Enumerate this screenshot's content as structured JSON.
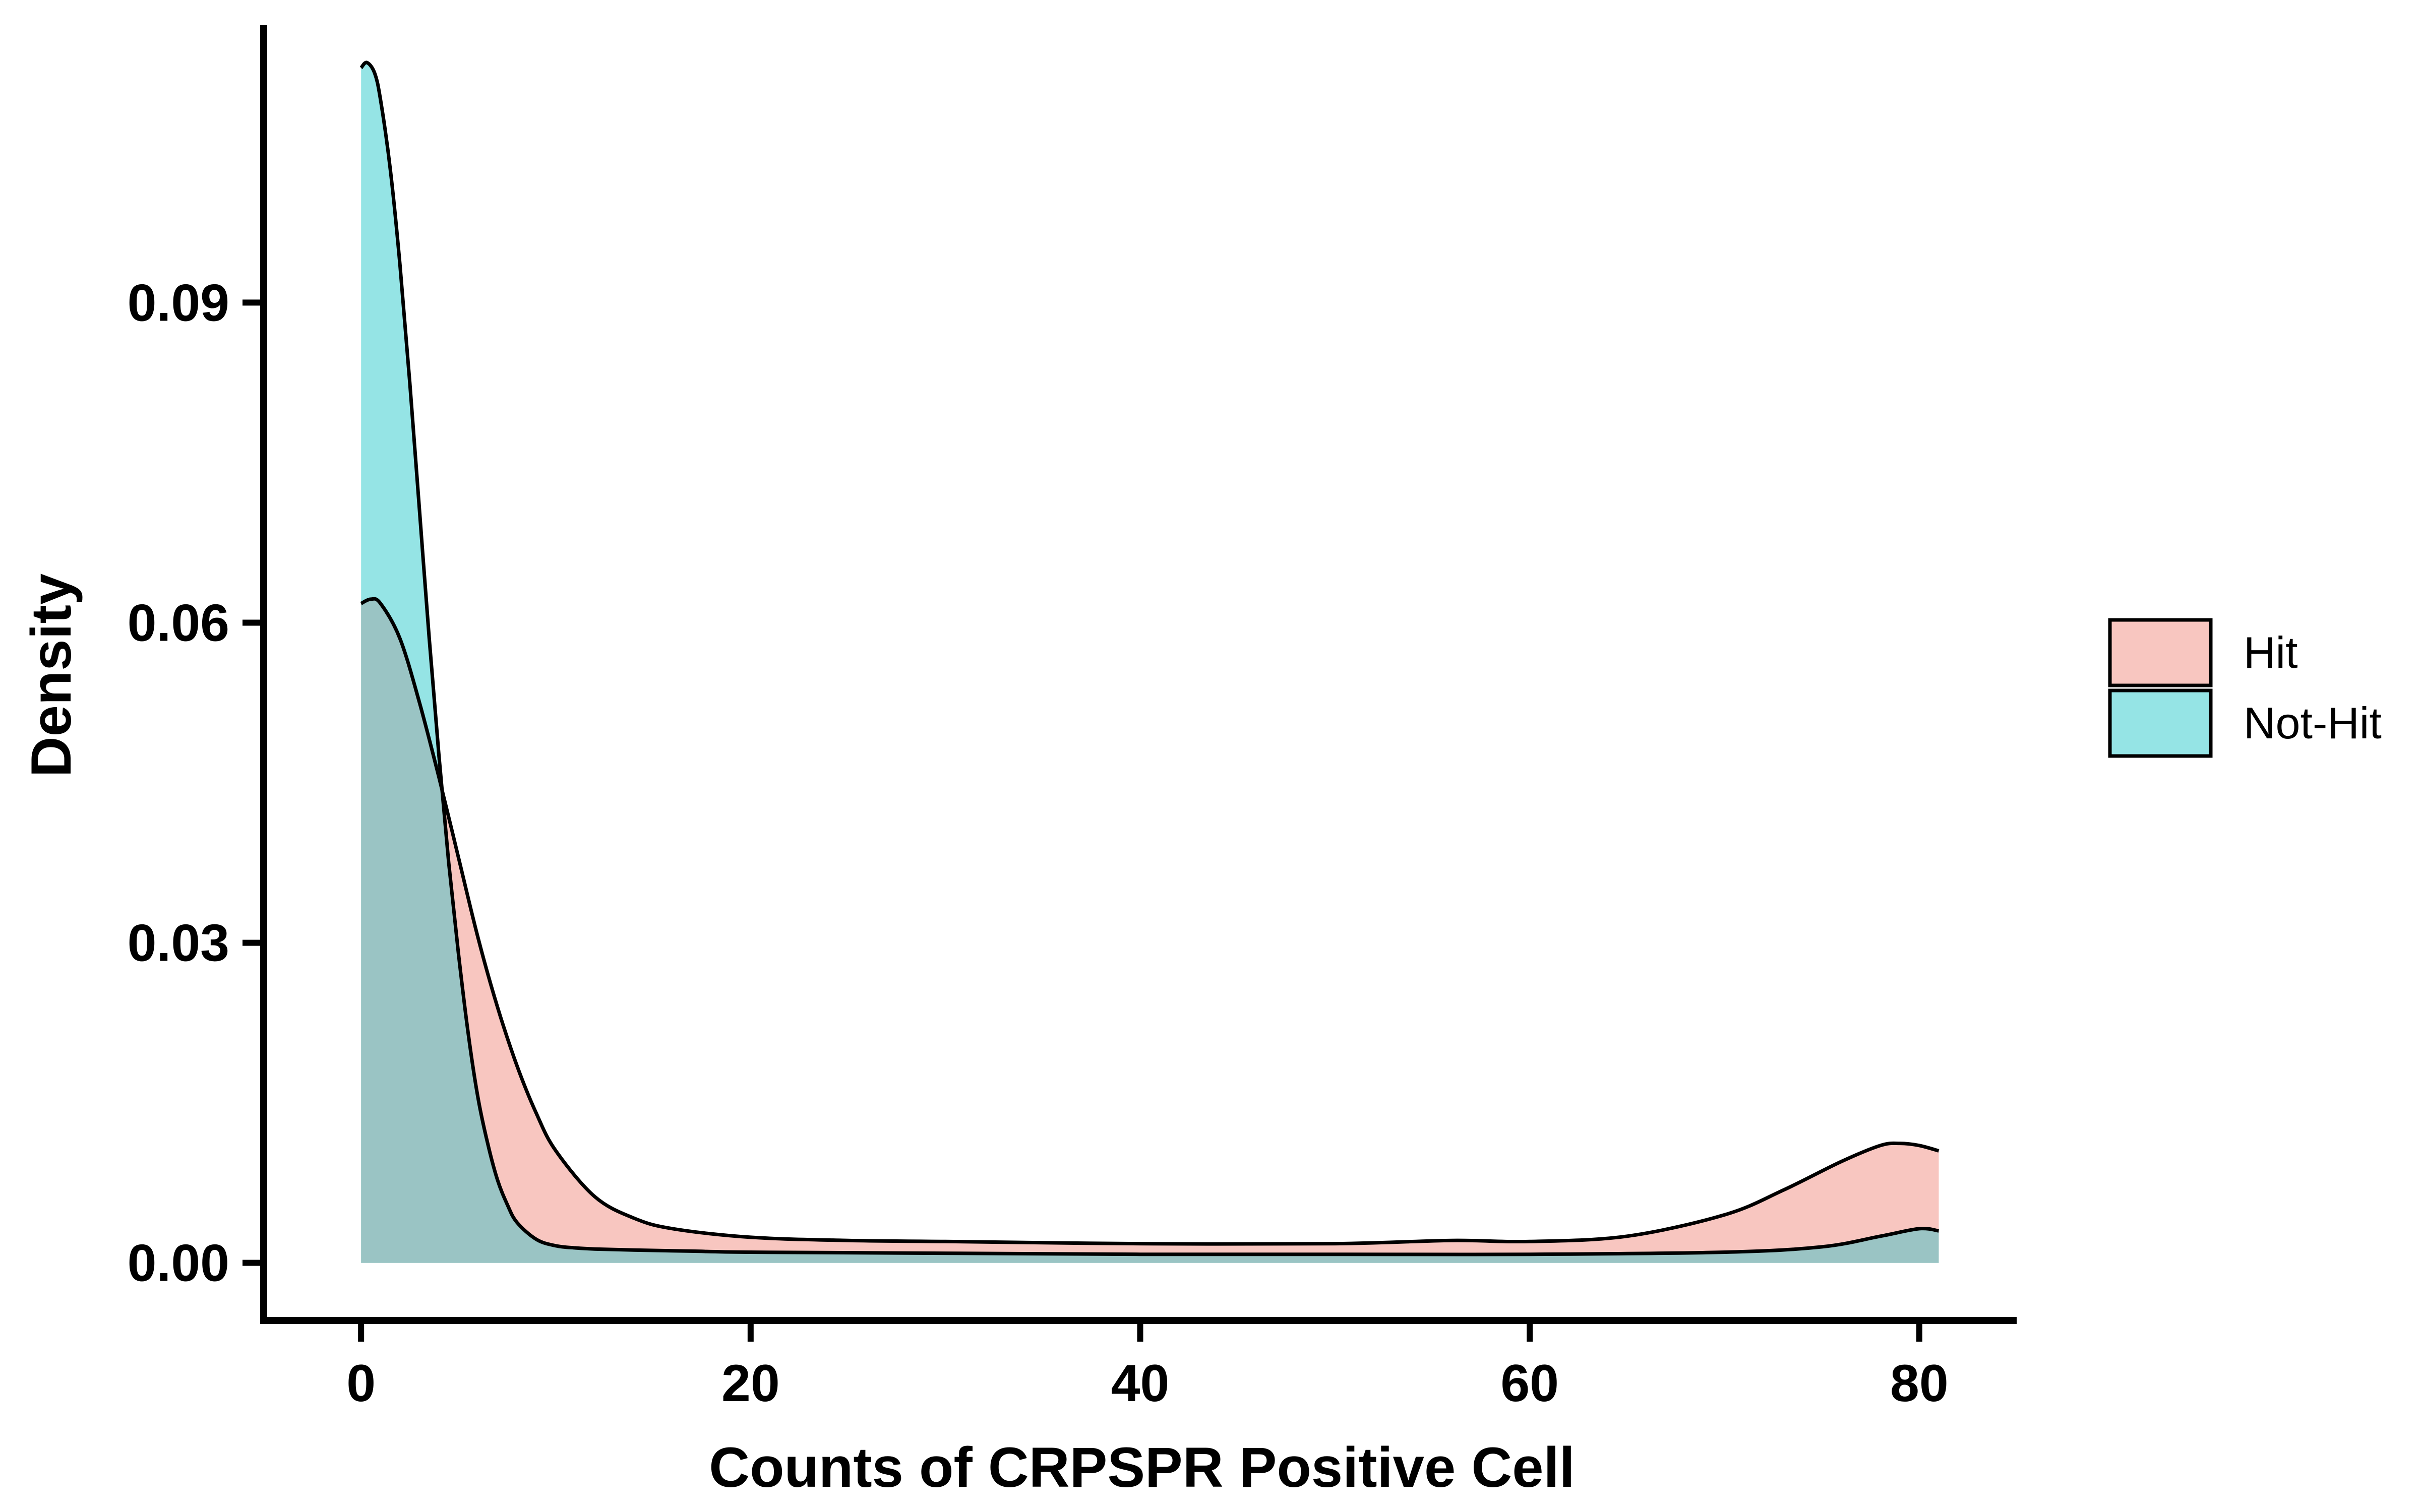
{
  "chart_data": {
    "type": "area",
    "title": "",
    "xlabel": "Counts of CRPSPR Positive Cell",
    "ylabel": "Density",
    "xlim": [
      -5,
      85
    ],
    "ylim": [
      -0.0054,
      0.116
    ],
    "x_ticks": [
      0,
      20,
      40,
      60,
      80
    ],
    "x_tick_labels": [
      "0",
      "20",
      "40",
      "60",
      "80"
    ],
    "y_ticks": [
      0.0,
      0.03,
      0.06,
      0.09
    ],
    "y_tick_labels": [
      "0.00",
      "0.03",
      "0.06",
      "0.09"
    ],
    "grid": false,
    "legend_position": "right",
    "series": [
      {
        "name": "Hit",
        "color": "#F8C6C0",
        "x": [
          0,
          0.5,
          1,
          2,
          3,
          4,
          5,
          6,
          7,
          8,
          9,
          10,
          12,
          14,
          16,
          20,
          25,
          30,
          40,
          50,
          56,
          60,
          65,
          70,
          73,
          76,
          78,
          79,
          80,
          81
        ],
        "values": [
          0.0618,
          0.0622,
          0.0618,
          0.0585,
          0.0525,
          0.0455,
          0.038,
          0.0305,
          0.024,
          0.0185,
          0.014,
          0.0105,
          0.0062,
          0.0042,
          0.0032,
          0.0024,
          0.0021,
          0.002,
          0.0018,
          0.0018,
          0.0021,
          0.002,
          0.0025,
          0.0045,
          0.0068,
          0.0095,
          0.011,
          0.0112,
          0.011,
          0.0105
        ]
      },
      {
        "name": "Not-Hit",
        "color": "#95E4E5",
        "x": [
          0,
          0.3,
          0.7,
          1,
          1.5,
          2,
          2.5,
          3,
          3.5,
          4,
          4.5,
          5,
          5.5,
          6,
          6.5,
          7,
          7.5,
          8,
          9,
          10,
          11,
          12,
          14,
          17,
          20,
          30,
          40,
          50,
          60,
          70,
          75,
          78,
          80,
          81
        ],
        "values": [
          0.112,
          0.1125,
          0.1115,
          0.109,
          0.1025,
          0.0935,
          0.0825,
          0.0705,
          0.0585,
          0.0475,
          0.0375,
          0.029,
          0.0215,
          0.0155,
          0.0112,
          0.0078,
          0.0055,
          0.0038,
          0.0022,
          0.0016,
          0.0014,
          0.0013,
          0.0012,
          0.0011,
          0.001,
          0.0009,
          0.0008,
          0.0008,
          0.0008,
          0.001,
          0.0015,
          0.0025,
          0.0032,
          0.003
        ]
      }
    ],
    "overlap_color": "#9AC4C4"
  },
  "legend": {
    "items": [
      {
        "label": "Hit",
        "color": "#F8C6C0"
      },
      {
        "label": "Not-Hit",
        "color": "#95E4E5"
      }
    ]
  }
}
